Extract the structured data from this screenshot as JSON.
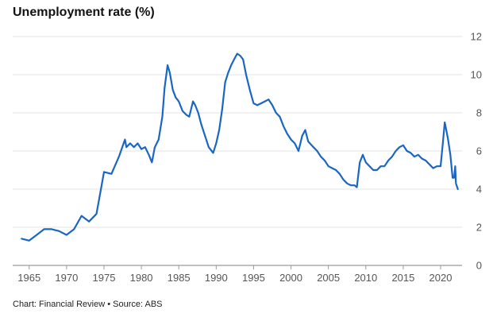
{
  "title": "Unemployment rate (%)",
  "footer": "Chart: Financial Review • Source: ABS",
  "chart_data": {
    "type": "line",
    "title": "Unemployment rate (%)",
    "xlabel": "",
    "ylabel": "",
    "xlim": [
      1962.8,
      2023.5
    ],
    "ylim": [
      0,
      12
    ],
    "grid": true,
    "yaxis_position": "right",
    "x_ticks": [
      "1965",
      "1970",
      "1975",
      "1980",
      "1985",
      "1990",
      "1995",
      "2000",
      "2005",
      "2010",
      "2015",
      "2020"
    ],
    "y_ticks": [
      "0",
      "2",
      "4",
      "6",
      "8",
      "10",
      "12"
    ],
    "line_color": "#1a66c4",
    "series": [
      {
        "points": [
          [
            1964.0,
            1.4
          ],
          [
            1965.0,
            1.3
          ],
          [
            1966.0,
            1.6
          ],
          [
            1967.0,
            1.9
          ],
          [
            1968.0,
            1.9
          ],
          [
            1969.0,
            1.8
          ],
          [
            1970.0,
            1.6
          ],
          [
            1971.0,
            1.9
          ],
          [
            1972.0,
            2.6
          ],
          [
            1973.0,
            2.3
          ],
          [
            1974.0,
            2.7
          ],
          [
            1974.5,
            3.8
          ],
          [
            1975.0,
            4.9
          ],
          [
            1976.0,
            4.8
          ],
          [
            1977.0,
            5.7
          ],
          [
            1977.8,
            6.6
          ],
          [
            1978.0,
            6.2
          ],
          [
            1978.5,
            6.4
          ],
          [
            1979.0,
            6.2
          ],
          [
            1979.5,
            6.4
          ],
          [
            1980.0,
            6.1
          ],
          [
            1980.5,
            6.2
          ],
          [
            1981.0,
            5.8
          ],
          [
            1981.4,
            5.4
          ],
          [
            1981.8,
            6.2
          ],
          [
            1982.3,
            6.6
          ],
          [
            1982.8,
            7.8
          ],
          [
            1983.1,
            9.3
          ],
          [
            1983.5,
            10.5
          ],
          [
            1983.8,
            10.1
          ],
          [
            1984.2,
            9.2
          ],
          [
            1984.6,
            8.8
          ],
          [
            1985.0,
            8.6
          ],
          [
            1985.5,
            8.1
          ],
          [
            1986.0,
            7.9
          ],
          [
            1986.4,
            7.8
          ],
          [
            1986.9,
            8.6
          ],
          [
            1987.2,
            8.4
          ],
          [
            1987.6,
            8.0
          ],
          [
            1988.0,
            7.4
          ],
          [
            1988.5,
            6.8
          ],
          [
            1989.0,
            6.2
          ],
          [
            1989.6,
            5.9
          ],
          [
            1990.0,
            6.4
          ],
          [
            1990.4,
            7.1
          ],
          [
            1990.8,
            8.2
          ],
          [
            1991.2,
            9.6
          ],
          [
            1991.6,
            10.1
          ],
          [
            1992.0,
            10.5
          ],
          [
            1992.4,
            10.8
          ],
          [
            1992.8,
            11.1
          ],
          [
            1993.2,
            11.0
          ],
          [
            1993.6,
            10.8
          ],
          [
            1994.0,
            10.0
          ],
          [
            1994.5,
            9.2
          ],
          [
            1995.0,
            8.5
          ],
          [
            1995.5,
            8.4
          ],
          [
            1996.0,
            8.5
          ],
          [
            1996.5,
            8.6
          ],
          [
            1997.0,
            8.7
          ],
          [
            1997.5,
            8.4
          ],
          [
            1998.0,
            8.0
          ],
          [
            1998.5,
            7.8
          ],
          [
            1999.0,
            7.3
          ],
          [
            1999.5,
            6.9
          ],
          [
            2000.0,
            6.6
          ],
          [
            2000.5,
            6.4
          ],
          [
            2001.0,
            6.0
          ],
          [
            2001.5,
            6.8
          ],
          [
            2001.9,
            7.1
          ],
          [
            2002.3,
            6.5
          ],
          [
            2003.0,
            6.2
          ],
          [
            2003.5,
            6.0
          ],
          [
            2004.0,
            5.7
          ],
          [
            2004.5,
            5.5
          ],
          [
            2005.0,
            5.2
          ],
          [
            2005.5,
            5.1
          ],
          [
            2006.0,
            5.0
          ],
          [
            2006.5,
            4.8
          ],
          [
            2007.0,
            4.5
          ],
          [
            2007.5,
            4.3
          ],
          [
            2008.0,
            4.2
          ],
          [
            2008.5,
            4.2
          ],
          [
            2008.8,
            4.1
          ],
          [
            2009.2,
            5.4
          ],
          [
            2009.6,
            5.8
          ],
          [
            2010.0,
            5.4
          ],
          [
            2010.5,
            5.2
          ],
          [
            2011.0,
            5.0
          ],
          [
            2011.5,
            5.0
          ],
          [
            2012.0,
            5.2
          ],
          [
            2012.5,
            5.2
          ],
          [
            2013.0,
            5.5
          ],
          [
            2013.5,
            5.7
          ],
          [
            2014.0,
            6.0
          ],
          [
            2014.5,
            6.2
          ],
          [
            2015.0,
            6.3
          ],
          [
            2015.5,
            6.0
          ],
          [
            2016.0,
            5.9
          ],
          [
            2016.5,
            5.7
          ],
          [
            2017.0,
            5.8
          ],
          [
            2017.5,
            5.6
          ],
          [
            2018.0,
            5.5
          ],
          [
            2018.5,
            5.3
          ],
          [
            2019.0,
            5.1
          ],
          [
            2019.5,
            5.2
          ],
          [
            2020.0,
            5.2
          ],
          [
            2020.3,
            6.4
          ],
          [
            2020.55,
            7.5
          ],
          [
            2020.8,
            7.0
          ],
          [
            2021.0,
            6.6
          ],
          [
            2021.3,
            5.8
          ],
          [
            2021.6,
            4.6
          ],
          [
            2021.8,
            4.6
          ],
          [
            2021.95,
            5.2
          ],
          [
            2022.05,
            4.3
          ],
          [
            2022.3,
            4.0
          ]
        ]
      }
    ]
  }
}
